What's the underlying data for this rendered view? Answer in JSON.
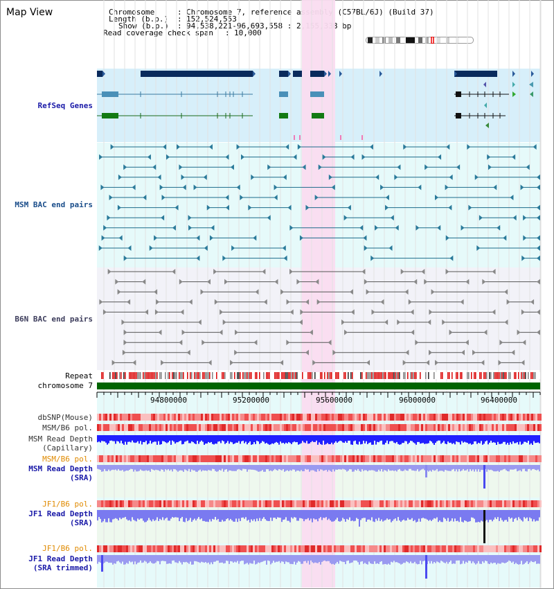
{
  "title": "Map View",
  "info": {
    "chromosome_key": "Chromosome",
    "chromosome_val": "Chromosome 7, reference assembly (C57BL/6J) (Build 37)",
    "length_key": "Length (b.p.)",
    "length_val": "152,524,553",
    "show_key": "Show (b.p.)",
    "show_val": "94,538,221-96,693,558 : 2,155,338 bp",
    "read_key": "Read coverage check span",
    "read_val": "10,000",
    "sep": ":"
  },
  "tracks": {
    "refseq": {
      "label": "RefSeq Genes",
      "color": "#00008b"
    },
    "msm_bac": {
      "label": "MSM BAC end pairs",
      "color": "#00509e"
    },
    "b6n_bac": {
      "label": "B6N BAC end pairs",
      "color": "#4a4a7a"
    },
    "repeat": {
      "label": "Repeat"
    },
    "chromosome": {
      "label": "chromosome 7"
    },
    "dbsnp": {
      "label": "dbSNP(Mouse)"
    },
    "msm_b6_pol": {
      "label": "MSM/B6 pol."
    },
    "msm_read_depth_cap": {
      "label": "MSM Read Depth",
      "label2": "(Capillary)"
    },
    "msm_b6_pol_2": {
      "label": "MSM/B6 pol.",
      "color": "#e08a00"
    },
    "msm_read_depth_sra": {
      "label": "MSM Read Depth",
      "label2": "(SRA)"
    },
    "jf1_b6_pol": {
      "label": "JF1/B6 pol.",
      "color": "#e08a00"
    },
    "jf1_read_depth_sra": {
      "label": "JF1 Read Depth",
      "label2": "(SRA)"
    },
    "jf1_b6_pol_2": {
      "label": "JF1/B6 pol.",
      "color": "#e08a00"
    },
    "jf1_read_depth_trim": {
      "label": "JF1 Read Depth",
      "label2": "(SRA trimmed)"
    }
  },
  "axis": {
    "ticks": [
      "94800000",
      "95200000",
      "95600000",
      "96000000",
      "96400000"
    ]
  },
  "colors": {
    "refseq_bg": "#d7effa",
    "msm_bg": "#e6fafa",
    "b6n_bg": "#f2f2f8",
    "highlight": "#fadcf0",
    "chromosome": "#006400",
    "depth_cap": "#1a1aff",
    "depth_sra": "#8c8cf0"
  }
}
